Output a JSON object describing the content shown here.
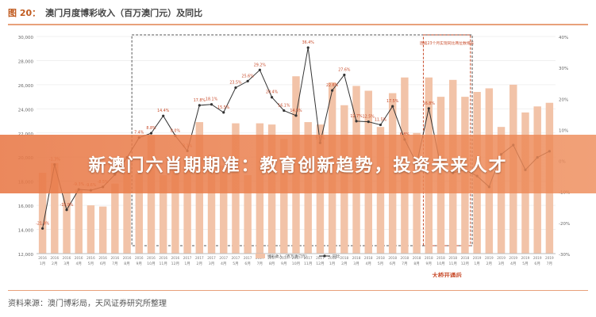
{
  "page": {
    "figure_number": "图 20：",
    "figure_title": "澳门月度博彩收入（百万澳门元）及同比",
    "headline": "新澳门六肖期期准：教育创新趋势，投资未来人才",
    "source": "资料来源：澳门博彩局，天风证券研究所整理"
  },
  "chart_data": {
    "type": "bar",
    "title": "澳门月度博彩收入（百万澳门元）及同比",
    "ylim_left": [
      12000,
      30000
    ],
    "ylim_right": [
      -30,
      40
    ],
    "left_ticks": [
      "30,000",
      "28,000",
      "26,000",
      "24,000",
      "22,000",
      "20,000",
      "18,000",
      "16,000",
      "14,000",
      "12,000"
    ],
    "right_ticks": [
      "40%",
      "30%",
      "20%",
      "10%",
      "0%",
      "-10%",
      "-20%",
      "-30%"
    ],
    "x_top": [
      "2016",
      "2016",
      "2016",
      "2016",
      "2016",
      "2016",
      "2016",
      "2016",
      "2016",
      "2016",
      "2016",
      "2016",
      "2017",
      "2017",
      "2017",
      "2017",
      "2017",
      "2017",
      "2017",
      "2017",
      "2017",
      "2017",
      "2017",
      "2017",
      "2018",
      "2018",
      "2018",
      "2018",
      "2018",
      "2018",
      "2018",
      "2018",
      "2018",
      "2018",
      "2018",
      "2018",
      "2019",
      "2019",
      "2019",
      "2019",
      "2019",
      "2019",
      "2019"
    ],
    "x_bottom": [
      "1月",
      "2月",
      "3月",
      "4月",
      "5月",
      "6月",
      "7月",
      "8月",
      "9月",
      "10月",
      "11月",
      "12月",
      "1月",
      "2月",
      "3月",
      "4月",
      "5月",
      "6月",
      "7月",
      "8月",
      "9月",
      "10月",
      "11月",
      "12月",
      "1月",
      "2月",
      "3月",
      "4月",
      "5月",
      "6月",
      "7月",
      "8月",
      "9月",
      "10月",
      "11月",
      "12月",
      "1月",
      "2月",
      "3月",
      "4月",
      "5月",
      "6月",
      "7月"
    ],
    "series": [
      {
        "name": "博彩收入（百万澳门元）",
        "axis": "left",
        "values": [
          18700,
          19500,
          17100,
          17300,
          16000,
          15900,
          17800,
          18800,
          18600,
          21800,
          18500,
          19900,
          19800,
          22900,
          20200,
          19300,
          22800,
          18500,
          22800,
          22700,
          21500,
          26700,
          22900,
          22700,
          26200,
          24300,
          25900,
          25500,
          22500,
          25300,
          26600,
          22000,
          26600,
          25000,
          26400,
          25000,
          25400,
          25700,
          22500,
          26000,
          23700,
          24200,
          24500
        ]
      },
      {
        "name": "同比",
        "axis": "right",
        "values": [
          -21.9,
          -1.3,
          -15.9,
          -9.3,
          -9.6,
          -8.5,
          -4.5,
          1,
          7.4,
          8.8,
          14.4,
          8.0,
          3.1,
          17.8,
          18.1,
          15.5,
          23.5,
          25.6,
          29.2,
          20.4,
          16.1,
          14.5,
          36.4,
          5.7,
          22.6,
          27.6,
          12.7,
          12.5,
          11.5,
          17.5,
          6.8,
          -1,
          16.8,
          -2,
          -4,
          -3,
          -5,
          -8.5,
          2,
          5,
          -3,
          1,
          3
        ],
        "labels": [
          "-21.9%",
          "-1.3%",
          "-15.9%",
          "-9.3%",
          "-9.6%",
          "-8.5%",
          "",
          "",
          "7.4%",
          "8.8%",
          "14.4%",
          "8.0%",
          "3.1%",
          "17.8%",
          "18.1%",
          "15.5%",
          "23.5%",
          "25.6%",
          "29.2%",
          "20.4%",
          "16.1%",
          "14.5%",
          "36.4%",
          "5.7%",
          "22.6%",
          "27.6%",
          "12.7%",
          "12.5%",
          "11.5%",
          "17.5%",
          "6.8%",
          "",
          "16.8%",
          "",
          "",
          "",
          "",
          "",
          "",
          "",
          "",
          "",
          ""
        ]
      }
    ],
    "legend": [
      "博彩收入（百万澳门元）",
      "同比"
    ],
    "annotations": [
      "连续23个月实现同比两位数增长",
      "大桥开通后"
    ],
    "colors": {
      "bars": "#f2c3a8",
      "line": "#333333",
      "accent": "#c84b2a"
    }
  }
}
